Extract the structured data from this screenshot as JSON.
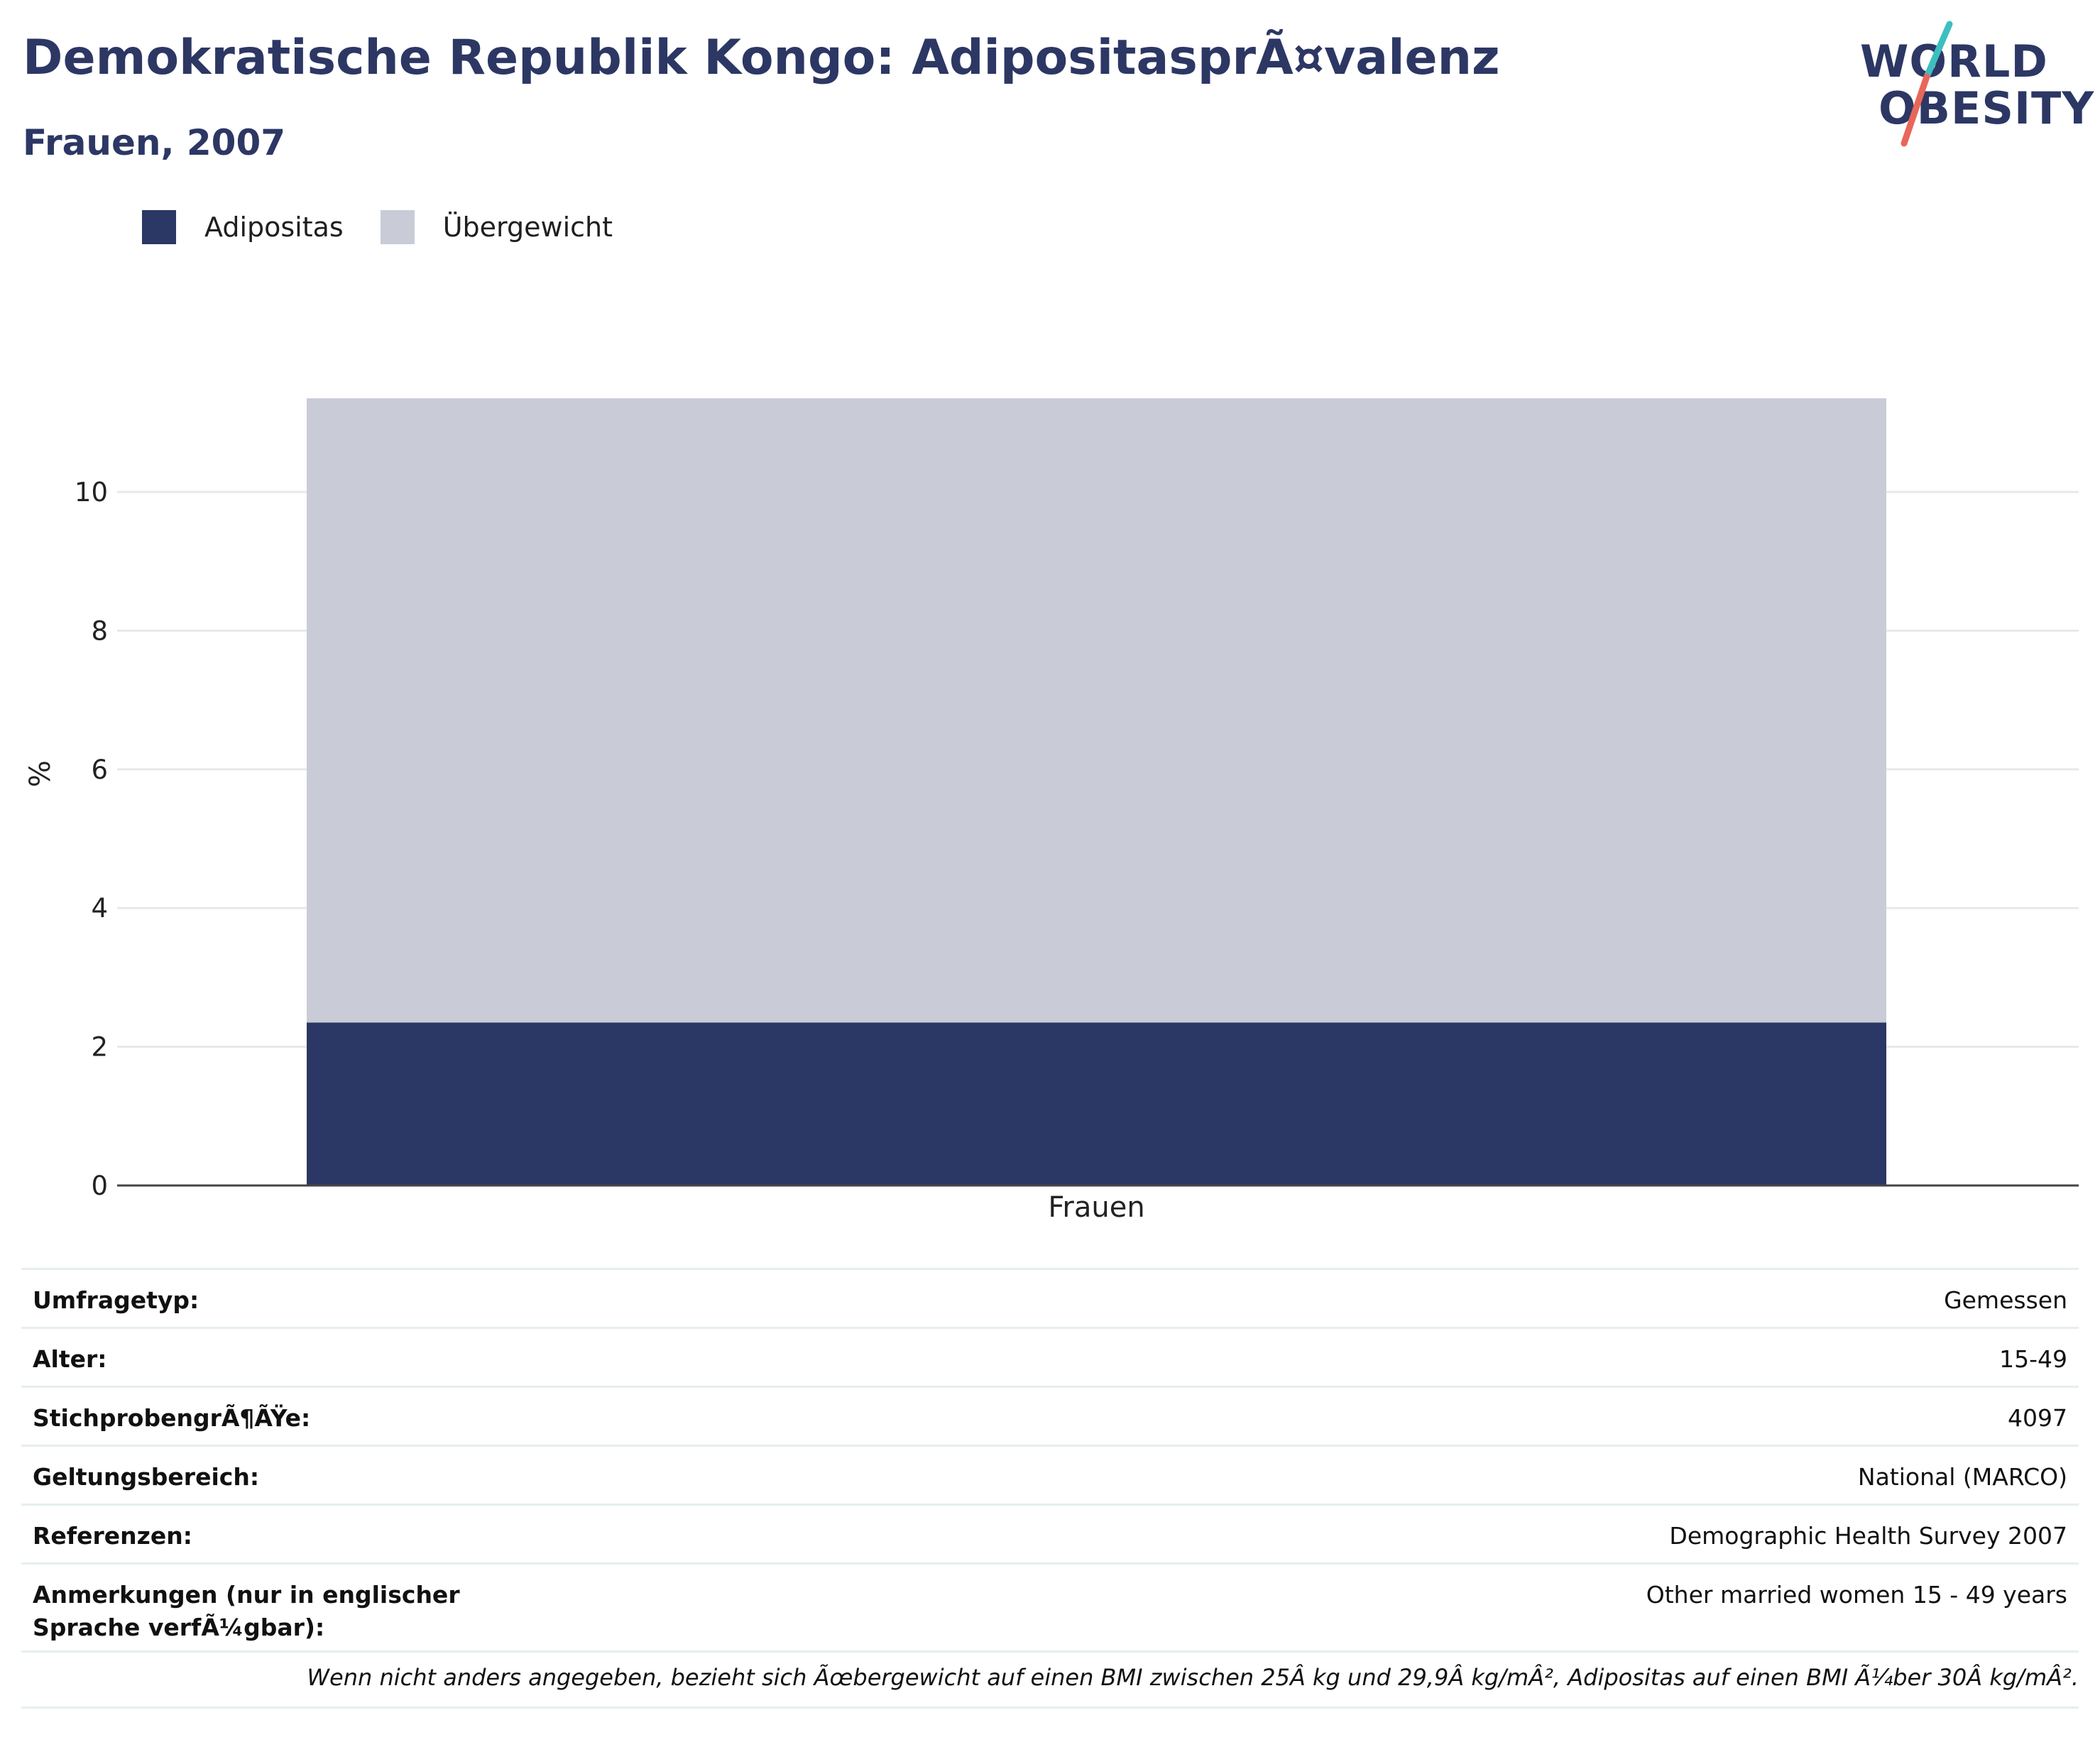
{
  "header": {
    "title": "Demokratische Republik Kongo: AdipositasprÃ¤valenz",
    "subtitle": "Frauen, 2007"
  },
  "logo": {
    "line1": "WORLD",
    "line2": "OBESITY"
  },
  "colors": {
    "obesity": "#2b3764",
    "overweight": "#c9ccd7",
    "title": "#2c3764",
    "logo_teal": "#3dbfbf",
    "logo_coral": "#e8675a"
  },
  "chart_data": {
    "type": "bar",
    "stacked": true,
    "categories": [
      "Frauen"
    ],
    "series": [
      {
        "name": "Adipositas",
        "values": [
          2.35
        ]
      },
      {
        "name": "Übergewicht",
        "values": [
          9.0
        ]
      }
    ],
    "ylabel": "%",
    "xlabel": "",
    "ylim": [
      0,
      11.35
    ],
    "yticks": [
      0,
      2,
      4,
      6,
      8,
      10
    ],
    "grid": true,
    "legend": "top-left"
  },
  "info_table": [
    {
      "label": "Umfragetyp:",
      "value": "Gemessen"
    },
    {
      "label": "Alter:",
      "value": "15-49"
    },
    {
      "label": "StichprobengrÃ¶ÃŸe:",
      "value": "4097"
    },
    {
      "label": "Geltungsbereich:",
      "value": "National (MARCO)"
    },
    {
      "label": "Referenzen:",
      "value": "Demographic Health Survey 2007"
    },
    {
      "label": "Anmerkungen (nur in englischer Sprache verfÃ¼gbar):",
      "value": "Other married women 15 - 49 years"
    }
  ],
  "footnote": "Wenn nicht anders angegeben, bezieht sich Ãœbergewicht auf einen BMI zwischen 25Â kg und 29,9Â kg/mÂ², Adipositas auf einen BMI Ã¼ber 30Â kg/mÂ²."
}
